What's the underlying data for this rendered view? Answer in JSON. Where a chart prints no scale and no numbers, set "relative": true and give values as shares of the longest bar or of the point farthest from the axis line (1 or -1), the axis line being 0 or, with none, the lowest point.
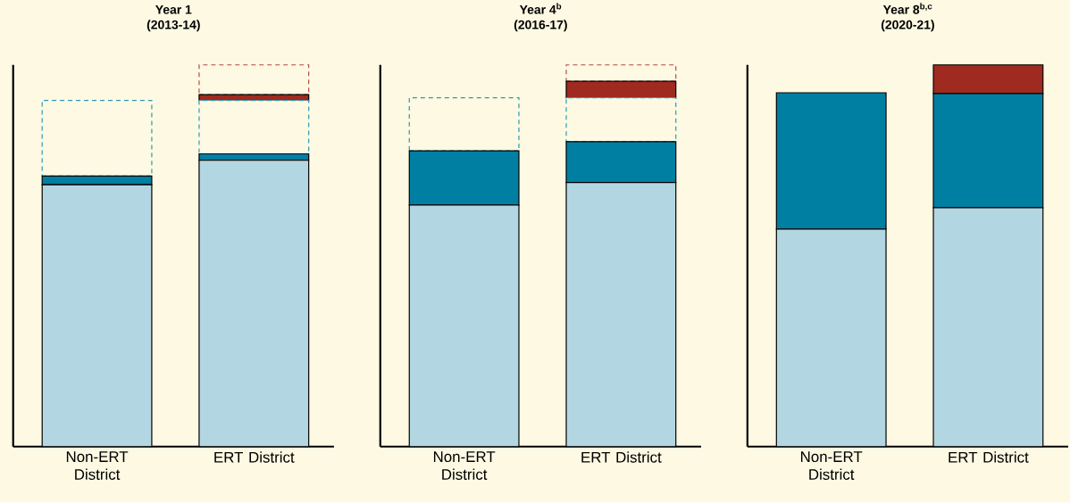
{
  "chart_data": [
    {
      "type": "bar",
      "title": "Year 1",
      "subtitle": "(2013-14)",
      "categories": [
        "Non-ERT District",
        "ERT District"
      ],
      "stacked": true,
      "relative": true,
      "series": [
        {
          "color": "#b3d7e2",
          "values": [
            0.686,
            0.75
          ]
        },
        {
          "color": "#007fa3",
          "values": [
            0.023,
            0.017
          ]
        },
        {
          "color": "#2a9ab8",
          "line_style": "dashed",
          "values": [
            0.198,
            0.14
          ]
        },
        {
          "color": "#9e2a20",
          "values": [
            0,
            0.015
          ]
        },
        {
          "color": "#b84a40",
          "line_style": "dashed",
          "values": [
            0,
            0.078
          ]
        }
      ]
    },
    {
      "type": "bar",
      "title": "Year 4$^{b}$",
      "subtitle": "(2016-17)",
      "categories": [
        "Non-ERT District",
        "ERT District"
      ],
      "stacked": true,
      "relative": true,
      "series": [
        {
          "color": "#b3d7e2",
          "values": [
            0.633,
            0.692
          ]
        },
        {
          "color": "#007fa3",
          "values": [
            0.142,
            0.107
          ]
        },
        {
          "color": "#2a9ab8",
          "line_style": "dashed",
          "values": [
            0.139,
            0.115
          ]
        },
        {
          "color": "#9e2a20",
          "values": [
            0,
            0.043
          ]
        },
        {
          "color": "#b84a40",
          "line_style": "dashed",
          "values": [
            0,
            0.043
          ]
        }
      ]
    },
    {
      "type": "bar",
      "title": "Year 8$^{b,c}$",
      "subtitle": "(2020-21)",
      "categories": [
        "Non-ERT District",
        "ERT District"
      ],
      "stacked": true,
      "relative": true,
      "series": [
        {
          "color": "#b3d7e2",
          "values": [
            0.57,
            0.626
          ]
        },
        {
          "color": "#007fa3",
          "values": [
            0.357,
            0.299
          ]
        },
        {
          "color": "#9e2a20",
          "values": [
            0,
            0.075
          ]
        }
      ]
    }
  ]
}
